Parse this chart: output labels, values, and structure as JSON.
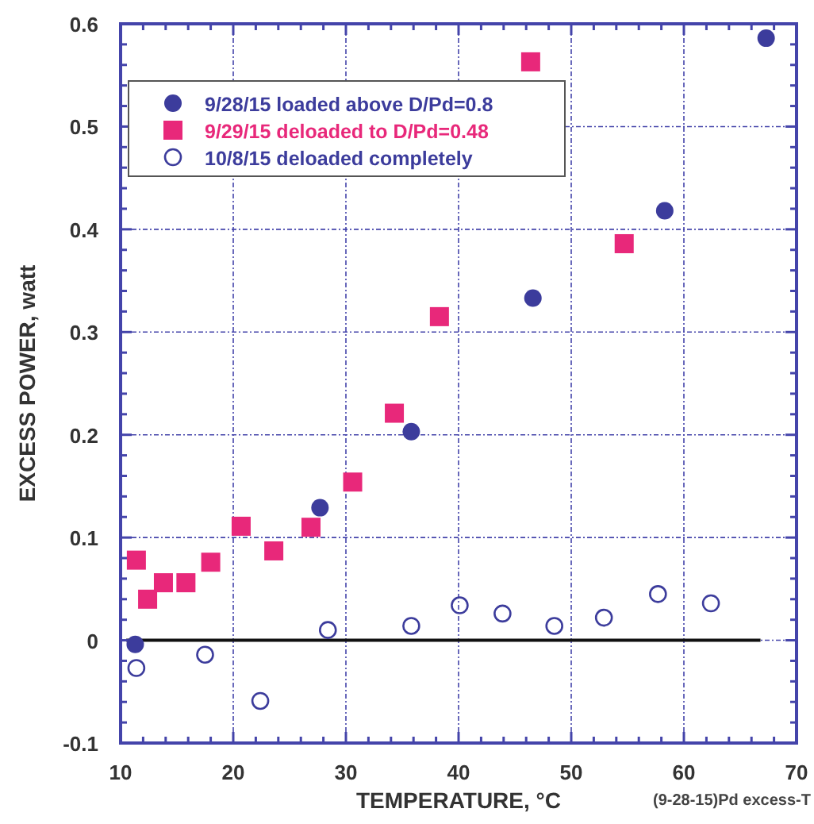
{
  "chart_data": {
    "type": "scatter",
    "xlabel": "TEMPERATURE, °C",
    "ylabel": "EXCESS POWER, watt",
    "xlim": [
      10,
      70
    ],
    "ylim": [
      -0.1,
      0.6
    ],
    "xticks": [
      10,
      {
        "value": 12,
        "label": null
      },
      {
        "value": 14,
        "label": null
      },
      {
        "value": 16,
        "label": null
      },
      {
        "value": 18,
        "label": null
      },
      20,
      {
        "value": 22,
        "label": null
      },
      {
        "value": 24,
        "label": null
      },
      {
        "value": 26,
        "label": null
      },
      {
        "value": 28,
        "label": null
      },
      30,
      {
        "value": 32,
        "label": null
      },
      {
        "value": 34,
        "label": null
      },
      {
        "value": 36,
        "label": null
      },
      {
        "value": 38,
        "label": null
      },
      40,
      {
        "value": 42,
        "label": null
      },
      {
        "value": 44,
        "label": null
      },
      {
        "value": 46,
        "label": null
      },
      {
        "value": 48,
        "label": null
      },
      50,
      {
        "value": 52,
        "label": null
      },
      {
        "value": 54,
        "label": null
      },
      {
        "value": 56,
        "label": null
      },
      {
        "value": 58,
        "label": null
      },
      60,
      {
        "value": 62,
        "label": null
      },
      {
        "value": 64,
        "label": null
      },
      {
        "value": 66,
        "label": null
      },
      {
        "value": 68,
        "label": null
      },
      70
    ],
    "yticks": [
      -0.1,
      {
        "value": -0.08,
        "label": null
      },
      {
        "value": -0.06,
        "label": null
      },
      {
        "value": -0.04,
        "label": null
      },
      {
        "value": -0.02,
        "label": null
      },
      0,
      {
        "value": 0.02,
        "label": null
      },
      {
        "value": 0.04,
        "label": null
      },
      {
        "value": 0.06,
        "label": null
      },
      {
        "value": 0.08,
        "label": null
      },
      0.1,
      {
        "value": 0.12,
        "label": null
      },
      {
        "value": 0.14,
        "label": null
      },
      {
        "value": 0.16,
        "label": null
      },
      {
        "value": 0.18,
        "label": null
      },
      0.2,
      {
        "value": 0.22,
        "label": null
      },
      {
        "value": 0.24,
        "label": null
      },
      {
        "value": 0.26,
        "label": null
      },
      {
        "value": 0.28,
        "label": null
      },
      0.3,
      {
        "value": 0.32,
        "label": null
      },
      {
        "value": 0.34,
        "label": null
      },
      {
        "value": 0.36,
        "label": null
      },
      {
        "value": 0.38,
        "label": null
      },
      0.4,
      {
        "value": 0.42,
        "label": null
      },
      {
        "value": 0.44,
        "label": null
      },
      {
        "value": 0.46,
        "label": null
      },
      {
        "value": 0.48,
        "label": null
      },
      0.5,
      {
        "value": 0.52,
        "label": null
      },
      {
        "value": 0.54,
        "label": null
      },
      {
        "value": 0.56,
        "label": null
      },
      {
        "value": 0.58,
        "label": null
      },
      0.6
    ],
    "grid": true,
    "legend": "top left",
    "series": [
      {
        "name": "9/28/15 loaded above D/Pd=0.8",
        "color": "#3c3c9c",
        "marker": "circle",
        "x": [
          11.3,
          27.7,
          35.8,
          46.6,
          58.3,
          67.3
        ],
        "values": [
          -0.004,
          0.129,
          0.203,
          0.333,
          0.418,
          0.586
        ]
      },
      {
        "name": "9/29/15 deloaded to D/Pd=0.48",
        "color": "#e8287a",
        "marker": "square",
        "x": [
          11.4,
          12.4,
          13.8,
          15.8,
          18.0,
          20.7,
          23.6,
          26.9,
          30.6,
          34.3,
          38.3,
          46.4,
          54.7
        ],
        "values": [
          0.078,
          0.04,
          0.056,
          0.056,
          0.076,
          0.111,
          0.087,
          0.11,
          0.154,
          0.221,
          0.315,
          0.563,
          0.386
        ]
      },
      {
        "name": "10/8/15 deloaded completely",
        "color": "#3c3c9c",
        "marker": "open_circle",
        "x": [
          11.4,
          17.5,
          22.4,
          28.4,
          35.8,
          40.1,
          43.9,
          48.5,
          52.9,
          57.7,
          62.4
        ],
        "values": [
          -0.027,
          -0.014,
          -0.059,
          0.01,
          0.014,
          0.034,
          0.026,
          0.014,
          0.022,
          0.045,
          0.036
        ]
      }
    ],
    "ref_lines": [
      {
        "axis": "y",
        "value": 0,
        "color": "#111111"
      }
    ],
    "annotations": [
      "(9-28-15)Pd excess-T"
    ]
  }
}
